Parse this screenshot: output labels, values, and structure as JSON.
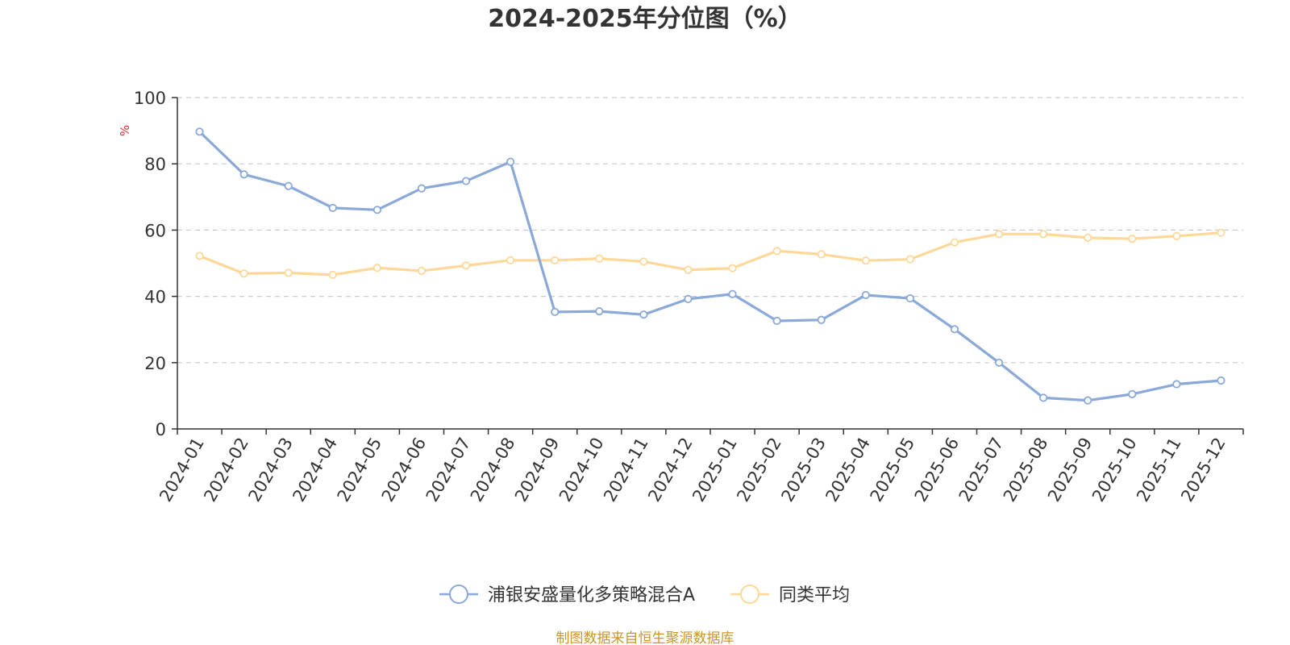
{
  "chart_data": {
    "type": "line",
    "title": "2024-2025年分位图（%）",
    "ylabel": "%",
    "ylim": [
      0,
      100
    ],
    "yticks": [
      "0",
      "20",
      "40",
      "60",
      "80",
      "100"
    ],
    "grid": "horizontal dashed",
    "legend_position": "bottom",
    "categories": [
      "2024-01",
      "2024-02",
      "2024-03",
      "2024-04",
      "2024-05",
      "2024-06",
      "2024-07",
      "2024-08",
      "2024-09",
      "2024-10",
      "2024-11",
      "2024-12",
      "2025-01",
      "2025-02",
      "2025-03",
      "2025-04",
      "2025-05",
      "2025-06",
      "2025-07",
      "2025-08",
      "2025-09",
      "2025-10",
      "2025-11",
      "2025-12"
    ],
    "series": [
      {
        "name": "浦银安盛量化多策略混合A",
        "color": "#8aa9d8",
        "values": [
          89.7,
          76.8,
          73.3,
          66.7,
          66.1,
          72.6,
          74.8,
          80.6,
          35.3,
          35.5,
          34.5,
          39.2,
          40.7,
          32.6,
          32.9,
          40.4,
          39.4,
          30.1,
          20.0,
          9.4,
          8.6,
          10.5,
          13.5,
          14.6
        ]
      },
      {
        "name": "同类平均",
        "color": "#fdd898",
        "values": [
          52.2,
          46.9,
          47.1,
          46.5,
          48.6,
          47.7,
          49.3,
          50.9,
          50.9,
          51.4,
          50.5,
          48.0,
          48.5,
          53.7,
          52.7,
          50.8,
          51.2,
          56.3,
          58.8,
          58.8,
          57.7,
          57.4,
          58.2,
          59.2
        ]
      }
    ]
  },
  "source": "制图数据来自恒生聚源数据库"
}
